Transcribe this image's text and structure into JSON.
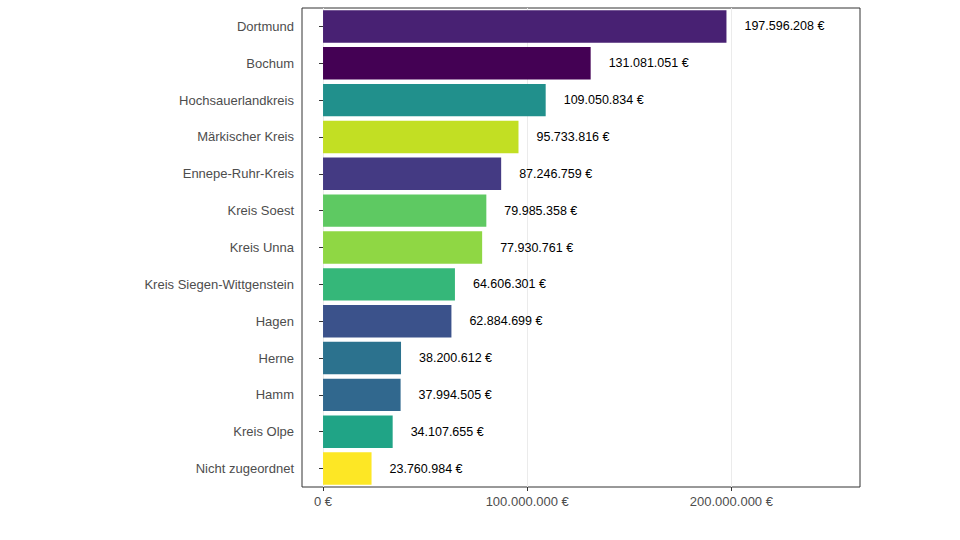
{
  "chart_data": {
    "type": "bar",
    "orientation": "horizontal",
    "data_labels": true,
    "grid": true,
    "categories": [
      "Dortmund",
      "Bochum",
      "Hochsauerlandkreis",
      "Märkischer Kreis",
      "Ennepe-Ruhr-Kreis",
      "Kreis Soest",
      "Kreis Unna",
      "Kreis Siegen-Wittgenstein",
      "Hagen",
      "Herne",
      "Hamm",
      "Kreis Olpe",
      "Nicht zugeordnet"
    ],
    "values": [
      197596208,
      131081051,
      109050834,
      95733816,
      87246759,
      79985358,
      77930761,
      64606301,
      62884699,
      38200612,
      37994505,
      34107655,
      23760984
    ],
    "value_labels": [
      "197.596.208 €",
      "131.081.051 €",
      "109.050.834 €",
      "95.733.816 €",
      "87.246.759 €",
      "79.985.358 €",
      "77.930.761 €",
      "64.606.301 €",
      "62.884.699 €",
      "38.200.612 €",
      "37.994.505 €",
      "34.107.655 €",
      "23.760.984 €"
    ],
    "colors": [
      "#482173",
      "#440154",
      "#21908C",
      "#C2DF23",
      "#443A83",
      "#5EC962",
      "#8FD744",
      "#35B779",
      "#3B528B",
      "#2C728E",
      "#31688E",
      "#20A486",
      "#FDE725"
    ],
    "xlim": [
      -10300000,
      263000000
    ],
    "xticks": [
      {
        "value": 0,
        "label": "0 €"
      },
      {
        "value": 100000000,
        "label": "100.000.000 €"
      },
      {
        "value": 200000000,
        "label": "200.000.000 €"
      }
    ]
  }
}
